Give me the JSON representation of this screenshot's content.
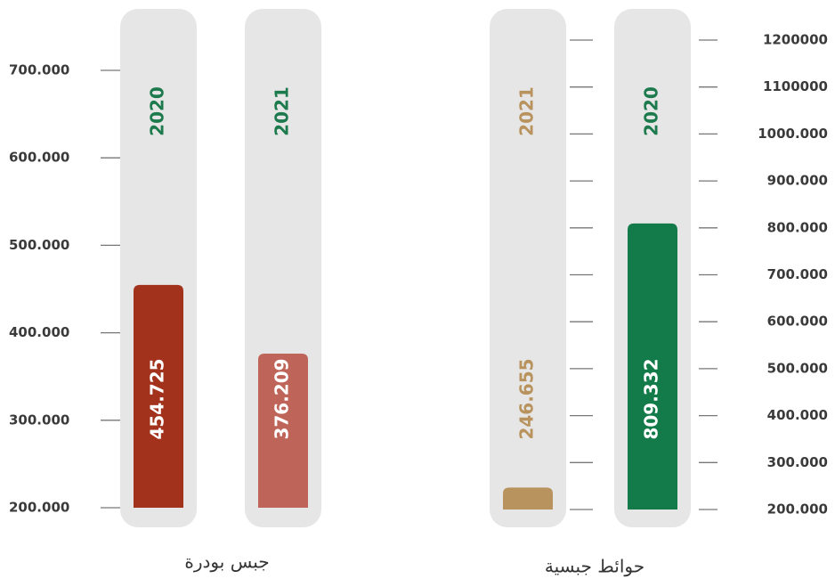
{
  "chart_data": [
    {
      "type": "bar",
      "title": "جبس بودرة",
      "categories": [
        "2020",
        "2021"
      ],
      "values": [
        454725,
        376209
      ],
      "value_labels": [
        "454.725",
        "376.209"
      ],
      "colors": [
        "#a3321c",
        "#bf6459"
      ],
      "category_colors": [
        "#1c7a4c",
        "#1c7a4c"
      ],
      "label_colors": [
        "#ffffff",
        "#ffffff"
      ],
      "ylim": [
        200000,
        700000
      ],
      "yticks": [
        {
          "value": 200000,
          "label": "200.000"
        },
        {
          "value": 300000,
          "label": "300.000"
        },
        {
          "value": 400000,
          "label": "400.000"
        },
        {
          "value": 500000,
          "label": "500.000"
        },
        {
          "value": 600000,
          "label": "600.000"
        },
        {
          "value": 700000,
          "label": "700.000"
        }
      ]
    },
    {
      "type": "bar",
      "title": "حوائط جبسية",
      "categories": [
        "2020",
        "2021"
      ],
      "values": [
        809332,
        246655
      ],
      "value_labels": [
        "809.332",
        "246.655"
      ],
      "colors": [
        "#137a4a",
        "#b8935e"
      ],
      "category_colors": [
        "#1c7a4c",
        "#b8935e"
      ],
      "label_colors": [
        "#ffffff",
        "#b8935e"
      ],
      "ylim": [
        200000,
        1200000
      ],
      "yticks": [
        {
          "value": 200000,
          "label": "200.000"
        },
        {
          "value": 300000,
          "label": "300.000"
        },
        {
          "value": 400000,
          "label": "400.000"
        },
        {
          "value": 500000,
          "label": "500.000"
        },
        {
          "value": 600000,
          "label": "600.000"
        },
        {
          "value": 700000,
          "label": "700.000"
        },
        {
          "value": 800000,
          "label": "800.000"
        },
        {
          "value": 900000,
          "label": "900.000"
        },
        {
          "value": 1000000,
          "label": "1000.000"
        },
        {
          "value": 1100000,
          "label": "1100000"
        },
        {
          "value": 1200000,
          "label": "1200000"
        }
      ]
    }
  ]
}
